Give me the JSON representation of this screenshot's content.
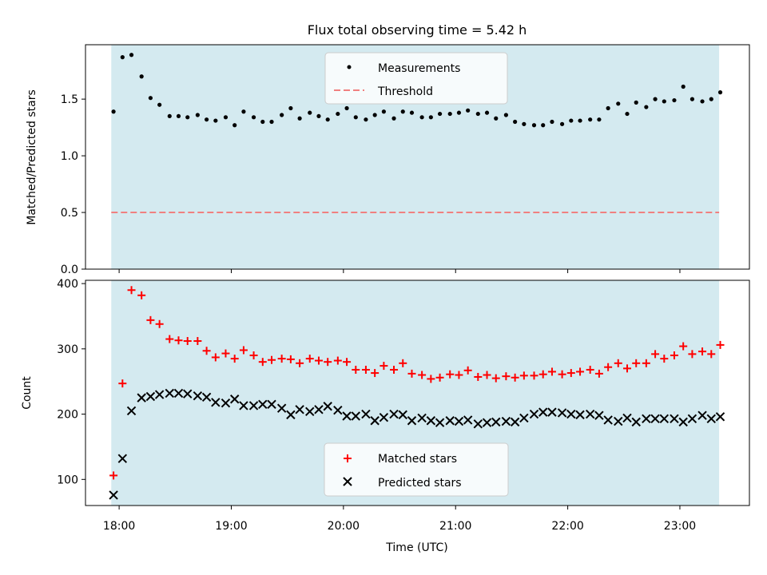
{
  "chart_data": [
    {
      "type": "scatter",
      "title": "Flux total observing time = 5.42 h",
      "xlabel": "",
      "ylabel": "Matched/Predicted stars",
      "ylim": [
        0,
        1.98
      ],
      "yticks": [
        0.0,
        0.5,
        1.0,
        1.5
      ],
      "ytick_labels": [
        "0.0",
        "0.5",
        "1.0",
        "1.5"
      ],
      "xlim_hours": [
        17.7,
        23.62
      ],
      "observing_window_hours": [
        17.93,
        23.35
      ],
      "window_color": "#d4eaf0",
      "legend": {
        "placement": "upper center",
        "entries": [
          "Measurements",
          "Threshold"
        ]
      },
      "series": [
        {
          "name": "Measurements",
          "marker": "dot",
          "color": "#000000",
          "x_hours": [
            17.95,
            18.03,
            18.11,
            18.2,
            18.28,
            18.36,
            18.45,
            18.53,
            18.61,
            18.7,
            18.78,
            18.86,
            18.95,
            19.03,
            19.11,
            19.2,
            19.28,
            19.36,
            19.45,
            19.53,
            19.61,
            19.7,
            19.78,
            19.86,
            19.95,
            20.03,
            20.11,
            20.2,
            20.28,
            20.36,
            20.45,
            20.53,
            20.61,
            20.7,
            20.78,
            20.86,
            20.95,
            21.03,
            21.11,
            21.2,
            21.28,
            21.36,
            21.45,
            21.53,
            21.61,
            21.7,
            21.78,
            21.86,
            21.95,
            22.03,
            22.11,
            22.2,
            22.28,
            22.36,
            22.45,
            22.53,
            22.61,
            22.7,
            22.78,
            22.86,
            22.95,
            23.03,
            23.11,
            23.2,
            23.28,
            23.36
          ],
          "values": [
            1.39,
            1.87,
            1.89,
            1.7,
            1.51,
            1.45,
            1.35,
            1.35,
            1.34,
            1.36,
            1.32,
            1.31,
            1.34,
            1.27,
            1.39,
            1.34,
            1.3,
            1.3,
            1.36,
            1.42,
            1.33,
            1.38,
            1.35,
            1.32,
            1.37,
            1.42,
            1.34,
            1.32,
            1.36,
            1.39,
            1.33,
            1.39,
            1.38,
            1.34,
            1.34,
            1.37,
            1.37,
            1.38,
            1.4,
            1.37,
            1.38,
            1.33,
            1.36,
            1.3,
            1.28,
            1.27,
            1.27,
            1.3,
            1.28,
            1.31,
            1.31,
            1.32,
            1.32,
            1.42,
            1.46,
            1.37,
            1.47,
            1.43,
            1.5,
            1.48,
            1.49,
            1.61,
            1.5,
            1.48,
            1.5,
            1.56
          ]
        },
        {
          "name": "Threshold",
          "marker": "dashed-line",
          "color": "#f08080",
          "values": [
            0.5
          ]
        }
      ]
    },
    {
      "type": "scatter",
      "title": "",
      "xlabel": "Time (UTC)",
      "ylabel": "Count",
      "ylim": [
        60,
        405
      ],
      "yticks": [
        100,
        200,
        300,
        400
      ],
      "ytick_labels": [
        "100",
        "200",
        "300",
        "400"
      ],
      "xticks_hours": [
        18,
        19,
        20,
        21,
        22,
        23
      ],
      "xtick_labels": [
        "18:00",
        "19:00",
        "20:00",
        "21:00",
        "22:00",
        "23:00"
      ],
      "xlim_hours": [
        17.7,
        23.62
      ],
      "observing_window_hours": [
        17.93,
        23.35
      ],
      "window_color": "#d4eaf0",
      "legend": {
        "placement": "lower center",
        "entries": [
          "Matched stars",
          "Predicted stars"
        ]
      },
      "series": [
        {
          "name": "Matched stars",
          "marker": "plus",
          "color": "#ff0000",
          "x_hours": [
            17.95,
            18.03,
            18.11,
            18.2,
            18.28,
            18.36,
            18.45,
            18.53,
            18.61,
            18.7,
            18.78,
            18.86,
            18.95,
            19.03,
            19.11,
            19.2,
            19.28,
            19.36,
            19.45,
            19.53,
            19.61,
            19.7,
            19.78,
            19.86,
            19.95,
            20.03,
            20.11,
            20.2,
            20.28,
            20.36,
            20.45,
            20.53,
            20.61,
            20.7,
            20.78,
            20.86,
            20.95,
            21.03,
            21.11,
            21.2,
            21.28,
            21.36,
            21.45,
            21.53,
            21.61,
            21.7,
            21.78,
            21.86,
            21.95,
            22.03,
            22.11,
            22.2,
            22.28,
            22.36,
            22.45,
            22.53,
            22.61,
            22.7,
            22.78,
            22.86,
            22.95,
            23.03,
            23.11,
            23.2,
            23.28,
            23.36
          ],
          "values": [
            106,
            247,
            390,
            382,
            344,
            338,
            315,
            313,
            312,
            312,
            297,
            287,
            293,
            285,
            298,
            290,
            280,
            283,
            285,
            284,
            278,
            285,
            282,
            280,
            282,
            280,
            268,
            268,
            263,
            274,
            268,
            278,
            262,
            260,
            254,
            256,
            261,
            260,
            267,
            257,
            260,
            255,
            258,
            256,
            259,
            259,
            261,
            265,
            261,
            263,
            265,
            268,
            262,
            272,
            278,
            270,
            278,
            278,
            292,
            285,
            290,
            304,
            292,
            296,
            292,
            306
          ]
        },
        {
          "name": "Predicted stars",
          "marker": "x",
          "color": "#000000",
          "x_hours": [
            17.95,
            18.03,
            18.11,
            18.2,
            18.28,
            18.36,
            18.45,
            18.53,
            18.61,
            18.7,
            18.78,
            18.86,
            18.95,
            19.03,
            19.11,
            19.2,
            19.28,
            19.36,
            19.45,
            19.53,
            19.61,
            19.7,
            19.78,
            19.86,
            19.95,
            20.03,
            20.11,
            20.2,
            20.28,
            20.36,
            20.45,
            20.53,
            20.61,
            20.7,
            20.78,
            20.86,
            20.95,
            21.03,
            21.11,
            21.2,
            21.28,
            21.36,
            21.45,
            21.53,
            21.61,
            21.7,
            21.78,
            21.86,
            21.95,
            22.03,
            22.11,
            22.2,
            22.28,
            22.36,
            22.45,
            22.53,
            22.61,
            22.7,
            22.78,
            22.86,
            22.95,
            23.03,
            23.11,
            23.2,
            23.28,
            23.36
          ],
          "values": [
            76,
            132,
            205,
            225,
            227,
            230,
            232,
            232,
            231,
            228,
            226,
            218,
            217,
            223,
            213,
            213,
            215,
            215,
            209,
            199,
            207,
            204,
            207,
            212,
            206,
            197,
            197,
            200,
            190,
            195,
            200,
            199,
            190,
            194,
            190,
            187,
            190,
            189,
            191,
            185,
            187,
            188,
            189,
            188,
            194,
            200,
            203,
            203,
            202,
            200,
            199,
            200,
            198,
            191,
            189,
            194,
            188,
            193,
            193,
            193,
            193,
            188,
            193,
            198,
            193,
            196
          ]
        }
      ]
    }
  ]
}
